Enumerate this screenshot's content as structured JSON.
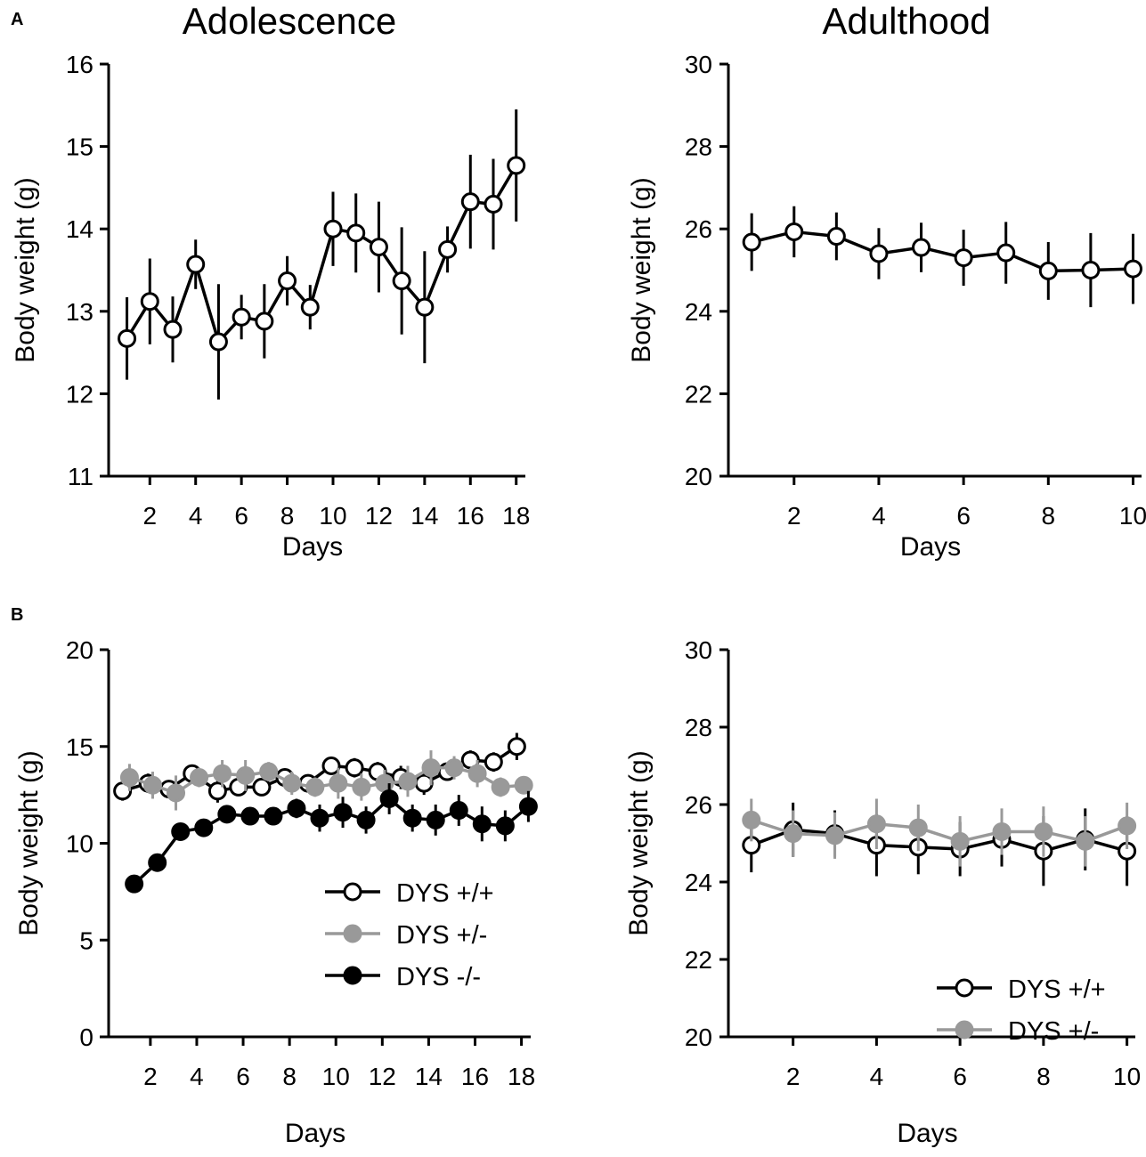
{
  "panel_labels": {
    "a": "A",
    "b": "B"
  },
  "colors": {
    "wt": "#000000",
    "het": "#999999",
    "ko": "#000000",
    "wt_fill": "#ffffff"
  },
  "chart_data": [
    {
      "id": "a_adolescence",
      "type": "line",
      "title": "Adolescence",
      "xlabel": "Days",
      "ylabel": "Body weight (g)",
      "xlim": [
        0.2,
        18.4
      ],
      "ylim": [
        11,
        16
      ],
      "xticks": [
        2,
        4,
        6,
        8,
        10,
        12,
        14,
        16,
        18
      ],
      "yticks": [
        11,
        12,
        13,
        14,
        15,
        16
      ],
      "show_legend": false,
      "series": [
        {
          "name": "DYS +/+",
          "style": "open",
          "x": [
            1,
            2,
            3,
            4,
            5,
            6,
            7,
            8,
            9,
            10,
            11,
            12,
            13,
            14,
            15,
            16,
            17,
            18
          ],
          "values": [
            12.67,
            13.12,
            12.78,
            13.57,
            12.63,
            12.93,
            12.88,
            13.37,
            13.05,
            14.0,
            13.95,
            13.78,
            13.37,
            13.05,
            13.75,
            14.33,
            14.3,
            14.77
          ],
          "errors": [
            0.5,
            0.52,
            0.4,
            0.3,
            0.7,
            0.27,
            0.45,
            0.3,
            0.27,
            0.45,
            0.48,
            0.55,
            0.65,
            0.68,
            0.28,
            0.57,
            0.55,
            0.68
          ]
        }
      ]
    },
    {
      "id": "a_adulthood",
      "type": "line",
      "title": "Adulthood",
      "xlabel": "Days",
      "ylabel": "Body weight (g)",
      "xlim": [
        0.45,
        10.2
      ],
      "ylim": [
        20,
        30
      ],
      "xticks": [
        2,
        4,
        6,
        8,
        10
      ],
      "yticks": [
        20,
        22,
        24,
        26,
        28,
        30
      ],
      "show_legend": false,
      "series": [
        {
          "name": "DYS +/+",
          "style": "open",
          "x": [
            1,
            2,
            3,
            4,
            5,
            6,
            7,
            8,
            9,
            10
          ],
          "values": [
            25.68,
            25.93,
            25.82,
            25.4,
            25.55,
            25.3,
            25.42,
            24.98,
            25.0,
            25.03
          ],
          "errors": [
            0.7,
            0.62,
            0.58,
            0.62,
            0.6,
            0.68,
            0.75,
            0.7,
            0.9,
            0.85
          ]
        }
      ]
    },
    {
      "id": "b_adolescence",
      "type": "line",
      "title": "",
      "xlabel": "Days",
      "ylabel": "Body weight (g)",
      "xlim": [
        0.2,
        18.4
      ],
      "ylim": [
        0,
        20
      ],
      "xticks": [
        2,
        4,
        6,
        8,
        10,
        12,
        14,
        16,
        18
      ],
      "yticks": [
        0,
        5,
        10,
        15,
        20
      ],
      "show_legend": true,
      "legend_position": "lower-right",
      "series": [
        {
          "name": "DYS +/+",
          "style": "open",
          "x": [
            0.8,
            1.9,
            2.8,
            3.8,
            4.9,
            5.8,
            6.8,
            7.8,
            8.8,
            9.8,
            10.8,
            11.8,
            12.8,
            13.8,
            14.8,
            15.8,
            16.8,
            17.8
          ],
          "values": [
            12.7,
            13.1,
            12.8,
            13.6,
            12.7,
            12.9,
            12.9,
            13.4,
            13.1,
            14.0,
            13.9,
            13.7,
            13.4,
            13.1,
            13.7,
            14.3,
            14.2,
            15.0
          ],
          "errors": [
            0.5,
            0.5,
            0.4,
            0.3,
            0.6,
            0.3,
            0.4,
            0.3,
            0.3,
            0.4,
            0.5,
            0.5,
            0.6,
            0.6,
            0.3,
            0.5,
            0.5,
            0.7
          ]
        },
        {
          "name": "DYS +/-",
          "style": "gray",
          "x": [
            1.1,
            2.1,
            3.1,
            4.1,
            5.1,
            6.1,
            7.1,
            8.1,
            9.1,
            10.1,
            11.1,
            12.1,
            13.1,
            14.1,
            15.1,
            16.1,
            17.1,
            18.1
          ],
          "values": [
            13.4,
            13.0,
            12.6,
            13.4,
            13.6,
            13.5,
            13.7,
            13.1,
            12.9,
            13.1,
            12.9,
            13.1,
            13.2,
            13.9,
            13.9,
            13.6,
            12.9,
            13.0
          ],
          "errors": [
            0.7,
            0.7,
            0.9,
            0.5,
            0.7,
            0.8,
            0.5,
            0.6,
            0.5,
            0.8,
            0.7,
            0.7,
            0.8,
            0.9,
            0.6,
            0.7,
            0.5,
            0.4
          ]
        },
        {
          "name": "DYS -/-",
          "style": "filled",
          "x": [
            1.3,
            2.3,
            3.3,
            4.3,
            5.3,
            6.3,
            7.3,
            8.3,
            9.3,
            10.3,
            11.3,
            12.3,
            13.3,
            14.3,
            15.3,
            16.3,
            17.3,
            18.3
          ],
          "values": [
            7.9,
            9.0,
            10.6,
            10.8,
            11.5,
            11.4,
            11.4,
            11.8,
            11.3,
            11.6,
            11.2,
            12.3,
            11.3,
            11.2,
            11.7,
            11.0,
            10.9,
            11.9
          ],
          "errors": [
            0.2,
            0.3,
            0.3,
            0.3,
            0.4,
            0.3,
            0.3,
            0.5,
            0.7,
            0.8,
            0.7,
            0.8,
            0.7,
            0.8,
            0.8,
            0.9,
            0.8,
            0.8
          ]
        }
      ]
    },
    {
      "id": "b_adulthood",
      "type": "line",
      "title": "",
      "xlabel": "Days",
      "ylabel": "Body weight (g)",
      "xlim": [
        0.45,
        10.2
      ],
      "ylim": [
        20,
        30
      ],
      "xticks": [
        2,
        4,
        6,
        8,
        10
      ],
      "yticks": [
        20,
        22,
        24,
        26,
        28,
        30
      ],
      "show_legend": true,
      "legend_position": "lower-right",
      "series": [
        {
          "name": "DYS +/+",
          "style": "open",
          "x": [
            1,
            2,
            3,
            4,
            5,
            6,
            7,
            8,
            9,
            10
          ],
          "values": [
            24.95,
            25.35,
            25.25,
            24.95,
            24.9,
            24.85,
            25.1,
            24.8,
            25.1,
            24.8
          ],
          "errors": [
            0.7,
            0.7,
            0.6,
            0.8,
            0.7,
            0.7,
            0.7,
            0.9,
            0.8,
            0.9
          ]
        },
        {
          "name": "DYS +/-",
          "style": "gray",
          "x": [
            1,
            2,
            3,
            4,
            5,
            6,
            7,
            8,
            9,
            10
          ],
          "values": [
            25.6,
            25.25,
            25.2,
            25.5,
            25.4,
            25.05,
            25.3,
            25.3,
            25.05,
            25.45
          ],
          "errors": [
            0.55,
            0.6,
            0.6,
            0.65,
            0.6,
            0.65,
            0.6,
            0.65,
            0.65,
            0.6
          ]
        }
      ]
    }
  ]
}
